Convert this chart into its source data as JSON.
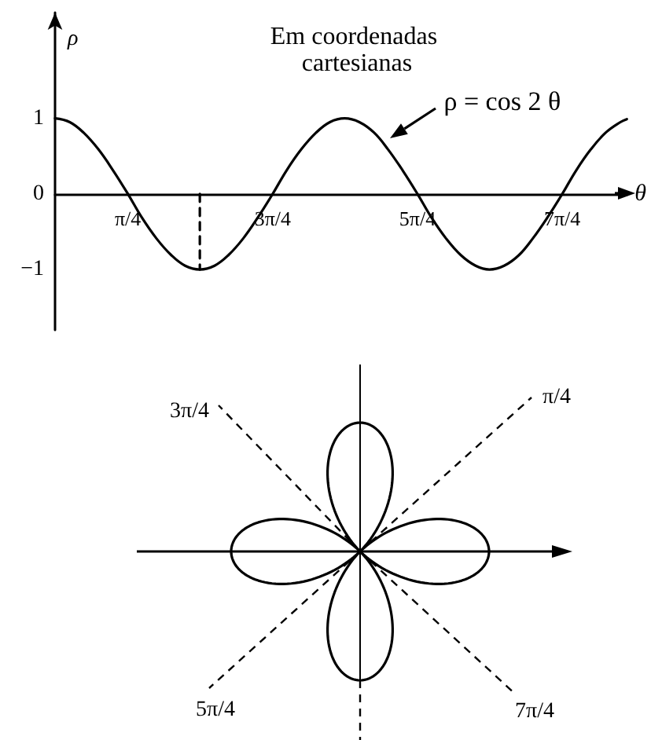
{
  "chart_data": [
    {
      "type": "line",
      "title": "Em coordenadas cartesianas",
      "xlabel": "θ",
      "ylabel": "ρ",
      "x": [
        0,
        0.16,
        0.31,
        0.47,
        0.63,
        0.79,
        0.94,
        1.1,
        1.26,
        1.41,
        1.57,
        1.73,
        1.88,
        2.04,
        2.2,
        2.36,
        2.51,
        2.67,
        2.83,
        2.98,
        3.14,
        3.3,
        3.46,
        3.61,
        3.77,
        3.93,
        4.08,
        4.24,
        4.4,
        4.56,
        4.71,
        4.87,
        5.03,
        5.18,
        5.34,
        5.5,
        5.65,
        5.81,
        5.97,
        6.13,
        6.2
      ],
      "series": [
        {
          "color": "#000000",
          "values": [
            1,
            0.95,
            0.81,
            0.59,
            0.31,
            0,
            -0.31,
            -0.59,
            -0.81,
            -0.95,
            -1,
            -0.95,
            -0.81,
            -0.59,
            -0.31,
            0,
            0.31,
            0.59,
            0.81,
            0.95,
            1,
            0.95,
            0.81,
            0.59,
            0.31,
            0,
            -0.31,
            -0.59,
            -0.81,
            -0.95,
            -1,
            -0.95,
            -0.81,
            -0.59,
            -0.31,
            0,
            0.31,
            0.59,
            0.81,
            0.95,
            0.99
          ]
        },
        {
          "color": "#000000",
          "line_style": "dashed",
          "x": [
            1.57,
            1.57
          ],
          "values": [
            0,
            -1
          ]
        }
      ],
      "xlim": [
        0,
        6.2
      ],
      "ylim": [
        -1.8,
        2.4
      ],
      "xticks": [
        {
          "value": 0.79,
          "label": "π/4"
        },
        {
          "value": 2.36,
          "label": "3π/4"
        },
        {
          "value": 3.93,
          "label": "5π/4"
        },
        {
          "value": 5.5,
          "label": "7π/4"
        }
      ],
      "yticks": [
        {
          "value": -1,
          "label": "−1"
        },
        0,
        1
      ],
      "annotations": [
        {
          "text": "ρ = cos 2 θ",
          "x": 3.55,
          "y": 0.68
        }
      ]
    },
    {
      "type": "other",
      "annotations": [
        "π/4",
        "3π/4",
        "5π/4",
        "7π/4"
      ]
    }
  ]
}
